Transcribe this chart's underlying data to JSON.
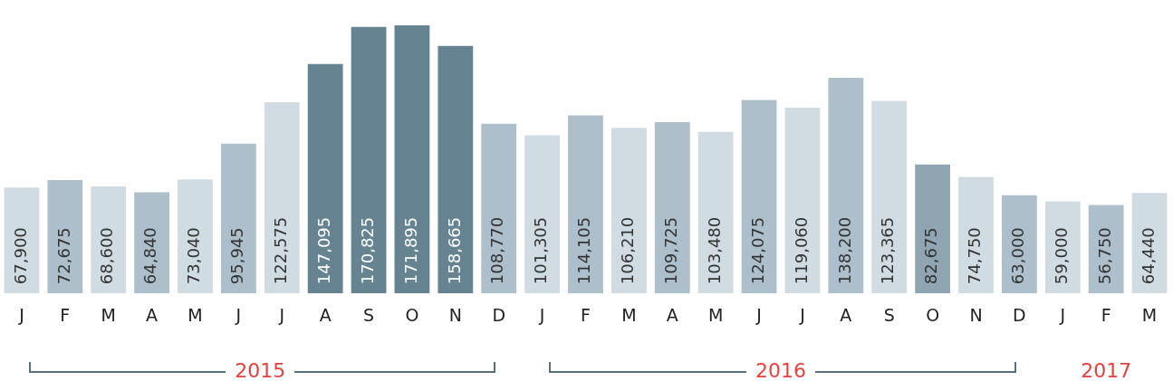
{
  "chart_data": {
    "type": "bar",
    "categories": [
      "J",
      "F",
      "M",
      "A",
      "M",
      "J",
      "J",
      "A",
      "S",
      "O",
      "N",
      "D",
      "J",
      "F",
      "M",
      "A",
      "M",
      "J",
      "J",
      "A",
      "S",
      "O",
      "N",
      "D",
      "J",
      "F",
      "M"
    ],
    "values": [
      67900,
      72675,
      68600,
      64840,
      73040,
      95945,
      122575,
      147095,
      170825,
      171895,
      158665,
      108770,
      101305,
      114105,
      106210,
      109725,
      103480,
      124075,
      119060,
      138200,
      123365,
      82675,
      74750,
      63000,
      59000,
      56750,
      64440
    ],
    "colors": [
      "#d0dce2",
      "#adbfca",
      "#d0dce2",
      "#adbfca",
      "#d0dce2",
      "#adbfca",
      "#d0dce2",
      "#658390",
      "#658390",
      "#658390",
      "#658390",
      "#adbfca",
      "#d0dce2",
      "#adbfca",
      "#d0dce2",
      "#adbfca",
      "#d0dce2",
      "#adbfca",
      "#d0dce2",
      "#adbfca",
      "#d0dce2",
      "#8fa6b2",
      "#d0dce2",
      "#adbfca",
      "#d0dce2",
      "#adbfca",
      "#d0dce2"
    ],
    "value_labels": [
      "67,900",
      "72,675",
      "68,600",
      "64,840",
      "73,040",
      "95,945",
      "122,575",
      "147,095",
      "170,825",
      "171,895",
      "158,665",
      "108,770",
      "101,305",
      "114,105",
      "106,210",
      "109,725",
      "103,480",
      "124,075",
      "119,060",
      "138,200",
      "123,365",
      "82,675",
      "74,750",
      "63,000",
      "59,000",
      "56,750",
      "64,440"
    ],
    "tick_labels": "x",
    "grid": false,
    "legend": false,
    "annotations": [
      "2015",
      "2016",
      "2017"
    ]
  }
}
